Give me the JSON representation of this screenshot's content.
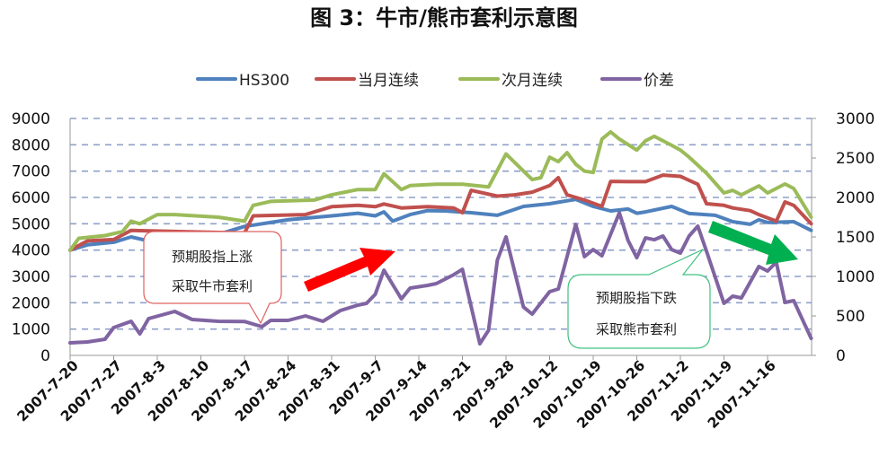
{
  "chart_data": {
    "type": "line",
    "title": "图 3：牛市/熊市套利示意图",
    "xlabel": "",
    "ylabel": "",
    "ylabel_right": "",
    "x_tick_labels": [
      "2007-7-20",
      "2007-7-27",
      "2007-8-3",
      "2007-8-10",
      "2007-8-17",
      "2007-8-24",
      "2007-8-31",
      "2007-9-7",
      "2007-9-14",
      "2007-9-21",
      "2007-9-28",
      "2007-10-12",
      "2007-10-19",
      "2007-10-26",
      "2007-11-2",
      "2007-11-9",
      "2007-11-16"
    ],
    "ylim_left": [
      0,
      9000
    ],
    "yticks_left": [
      "0",
      "1000",
      "2000",
      "3000",
      "4000",
      "5000",
      "6000",
      "7000",
      "8000",
      "9000"
    ],
    "ylim_right": [
      0,
      3000
    ],
    "yticks_right": [
      "0",
      "500",
      "1000",
      "1500",
      "2000",
      "2500",
      "3000"
    ],
    "grid": "horizontal dashed",
    "legend_placement": "top",
    "series": [
      {
        "name": "HS300",
        "axis": "left",
        "color": "#4f81bd",
        "points": [
          [
            "2007-7-20",
            4000
          ],
          [
            "2007-7-24",
            4200
          ],
          [
            "2007-7-27",
            4300
          ],
          [
            "2007-7-31",
            4500
          ],
          [
            "2007-8-2",
            4350
          ],
          [
            "2007-8-8",
            4500
          ],
          [
            "2007-8-14",
            4600
          ],
          [
            "2007-8-17",
            4900
          ],
          [
            "2007-8-22",
            5050
          ],
          [
            "2007-8-24",
            5150
          ],
          [
            "2007-8-31",
            5300
          ],
          [
            "2007-9-5",
            5400
          ],
          [
            "2007-9-7",
            5300
          ],
          [
            "2007-9-10",
            5450
          ],
          [
            "2007-9-11",
            5100
          ],
          [
            "2007-9-13",
            5350
          ],
          [
            "2007-9-17",
            5500
          ],
          [
            "2007-9-19",
            5490
          ],
          [
            "2007-9-24",
            5420
          ],
          [
            "2007-9-27",
            5320
          ],
          [
            "2007-10-9",
            5660
          ],
          [
            "2007-10-12",
            5760
          ],
          [
            "2007-10-17",
            5930
          ],
          [
            "2007-10-19",
            5660
          ],
          [
            "2007-10-23",
            5490
          ],
          [
            "2007-10-25",
            5560
          ],
          [
            "2007-10-26",
            5400
          ],
          [
            "2007-10-29",
            5450
          ],
          [
            "2007-11-1",
            5660
          ],
          [
            "2007-11-5",
            5390
          ],
          [
            "2007-11-8",
            5320
          ],
          [
            "2007-11-12",
            5080
          ],
          [
            "2007-11-14",
            4980
          ],
          [
            "2007-11-15",
            5150
          ],
          [
            "2007-11-16",
            5050
          ],
          [
            "2007-11-21",
            5080
          ],
          [
            "2007-11-23",
            4750
          ]
        ]
      },
      {
        "name": "当月连续",
        "axis": "left",
        "color": "#c0504d",
        "points": [
          [
            "2007-7-20",
            4000
          ],
          [
            "2007-7-24",
            4350
          ],
          [
            "2007-7-27",
            4400
          ],
          [
            "2007-7-31",
            4750
          ],
          [
            "2007-8-8",
            4700
          ],
          [
            "2007-8-17",
            4650
          ],
          [
            "2007-8-20",
            5300
          ],
          [
            "2007-8-28",
            5350
          ],
          [
            "2007-8-31",
            5650
          ],
          [
            "2007-9-5",
            5700
          ],
          [
            "2007-9-7",
            5650
          ],
          [
            "2007-9-10",
            5750
          ],
          [
            "2007-9-12",
            5600
          ],
          [
            "2007-9-17",
            5650
          ],
          [
            "2007-9-20",
            5600
          ],
          [
            "2007-9-21",
            5420
          ],
          [
            "2007-9-24",
            6270
          ],
          [
            "2007-9-27",
            6050
          ],
          [
            "2007-10-8",
            6100
          ],
          [
            "2007-10-10",
            6200
          ],
          [
            "2007-10-12",
            6450
          ],
          [
            "2007-10-15",
            6750
          ],
          [
            "2007-10-16",
            6100
          ],
          [
            "2007-10-18",
            5900
          ],
          [
            "2007-10-22",
            5660
          ],
          [
            "2007-10-23",
            6610
          ],
          [
            "2007-10-25",
            6600
          ],
          [
            "2007-10-29",
            6600
          ],
          [
            "2007-10-31",
            6850
          ],
          [
            "2007-11-2",
            6800
          ],
          [
            "2007-11-6",
            6500
          ],
          [
            "2007-11-7",
            5760
          ],
          [
            "2007-11-9",
            5700
          ],
          [
            "2007-11-12",
            5600
          ],
          [
            "2007-11-14",
            5500
          ],
          [
            "2007-11-15",
            5350
          ],
          [
            "2007-11-19",
            5100
          ],
          [
            "2007-11-20",
            5830
          ],
          [
            "2007-11-21",
            5700
          ],
          [
            "2007-11-23",
            5000
          ]
        ]
      },
      {
        "name": "次月连续",
        "axis": "left",
        "color": "#9bbb59",
        "points": [
          [
            "2007-7-20",
            4000
          ],
          [
            "2007-7-23",
            4450
          ],
          [
            "2007-7-26",
            4550
          ],
          [
            "2007-7-30",
            4700
          ],
          [
            "2007-7-31",
            5100
          ],
          [
            "2007-8-1",
            5000
          ],
          [
            "2007-8-3",
            5350
          ],
          [
            "2007-8-7",
            5350
          ],
          [
            "2007-8-14",
            5250
          ],
          [
            "2007-8-17",
            5100
          ],
          [
            "2007-8-20",
            5700
          ],
          [
            "2007-8-22",
            5850
          ],
          [
            "2007-8-29",
            5900
          ],
          [
            "2007-8-31",
            6100
          ],
          [
            "2007-9-5",
            6300
          ],
          [
            "2007-9-7",
            6300
          ],
          [
            "2007-9-10",
            6900
          ],
          [
            "2007-9-12",
            6300
          ],
          [
            "2007-9-13",
            6450
          ],
          [
            "2007-9-18",
            6500
          ],
          [
            "2007-9-21",
            6500
          ],
          [
            "2007-9-26",
            6400
          ],
          [
            "2007-9-28",
            7650
          ],
          [
            "2007-10-10",
            6680
          ],
          [
            "2007-10-11",
            6750
          ],
          [
            "2007-10-12",
            7530
          ],
          [
            "2007-10-15",
            7360
          ],
          [
            "2007-10-16",
            7700
          ],
          [
            "2007-10-17",
            7260
          ],
          [
            "2007-10-18",
            7000
          ],
          [
            "2007-10-19",
            6950
          ],
          [
            "2007-10-22",
            8220
          ],
          [
            "2007-10-23",
            8490
          ],
          [
            "2007-10-24",
            8220
          ],
          [
            "2007-10-26",
            7800
          ],
          [
            "2007-10-29",
            8150
          ],
          [
            "2007-10-30",
            8320
          ],
          [
            "2007-11-1",
            7980
          ],
          [
            "2007-11-2",
            7800
          ],
          [
            "2007-11-5",
            7530
          ],
          [
            "2007-11-7",
            6920
          ],
          [
            "2007-11-9",
            6170
          ],
          [
            "2007-11-12",
            6270
          ],
          [
            "2007-11-13",
            6100
          ],
          [
            "2007-11-15",
            6440
          ],
          [
            "2007-11-16",
            6170
          ],
          [
            "2007-11-20",
            6510
          ],
          [
            "2007-11-21",
            6340
          ],
          [
            "2007-11-23",
            5250
          ]
        ]
      },
      {
        "name": "价差",
        "axis": "right",
        "color": "#8064a2",
        "points": [
          [
            "2007-7-20",
            159
          ],
          [
            "2007-7-24",
            170
          ],
          [
            "2007-7-26",
            205
          ],
          [
            "2007-7-27",
            352
          ],
          [
            "2007-7-31",
            432
          ],
          [
            "2007-8-1",
            273
          ],
          [
            "2007-8-2",
            466
          ],
          [
            "2007-8-7",
            557
          ],
          [
            "2007-8-9",
            454
          ],
          [
            "2007-8-14",
            432
          ],
          [
            "2007-8-17",
            430
          ],
          [
            "2007-8-21",
            364
          ],
          [
            "2007-8-22",
            443
          ],
          [
            "2007-8-24",
            443
          ],
          [
            "2007-8-28",
            500
          ],
          [
            "2007-8-30",
            432
          ],
          [
            "2007-9-3",
            568
          ],
          [
            "2007-9-5",
            636
          ],
          [
            "2007-9-6",
            659
          ],
          [
            "2007-9-7",
            773
          ],
          [
            "2007-9-10",
            1079
          ],
          [
            "2007-9-12",
            716
          ],
          [
            "2007-9-13",
            852
          ],
          [
            "2007-9-17",
            886
          ],
          [
            "2007-9-18",
            909
          ],
          [
            "2007-9-20",
            1022
          ],
          [
            "2007-9-21",
            1090
          ],
          [
            "2007-9-25",
            148
          ],
          [
            "2007-9-26",
            318
          ],
          [
            "2007-9-27",
            1204
          ],
          [
            "2007-9-28",
            1500
          ],
          [
            "2007-10-9",
            613
          ],
          [
            "2007-10-10",
            523
          ],
          [
            "2007-10-12",
            807
          ],
          [
            "2007-10-15",
            841
          ],
          [
            "2007-10-17",
            1659
          ],
          [
            "2007-10-18",
            1250
          ],
          [
            "2007-10-19",
            1340
          ],
          [
            "2007-10-22",
            1261
          ],
          [
            "2007-10-24",
            1806
          ],
          [
            "2007-10-25",
            1454
          ],
          [
            "2007-10-26",
            1238
          ],
          [
            "2007-10-29",
            1488
          ],
          [
            "2007-10-30",
            1465
          ],
          [
            "2007-10-31",
            1511
          ],
          [
            "2007-11-1",
            1340
          ],
          [
            "2007-11-2",
            1295
          ],
          [
            "2007-11-5",
            1511
          ],
          [
            "2007-11-6",
            1636
          ],
          [
            "2007-11-7",
            1318
          ],
          [
            "2007-11-9",
            659
          ],
          [
            "2007-11-12",
            750
          ],
          [
            "2007-11-13",
            727
          ],
          [
            "2007-11-15",
            1125
          ],
          [
            "2007-11-16",
            1068
          ],
          [
            "2007-11-19",
            1181
          ],
          [
            "2007-11-20",
            670
          ],
          [
            "2007-11-21",
            693
          ],
          [
            "2007-11-23",
            216
          ]
        ]
      }
    ],
    "annotations": [
      {
        "lines": [
          "预期股指上涨",
          "采取牛市套利"
        ],
        "border_color": "#e06060",
        "arrow_color": "#ff0000",
        "arrow_direction": "up"
      },
      {
        "lines": [
          "预期股指下跌",
          "采取熊市套利"
        ],
        "border_color": "#40c080",
        "arrow_color": "#00b050",
        "arrow_direction": "down"
      }
    ]
  }
}
